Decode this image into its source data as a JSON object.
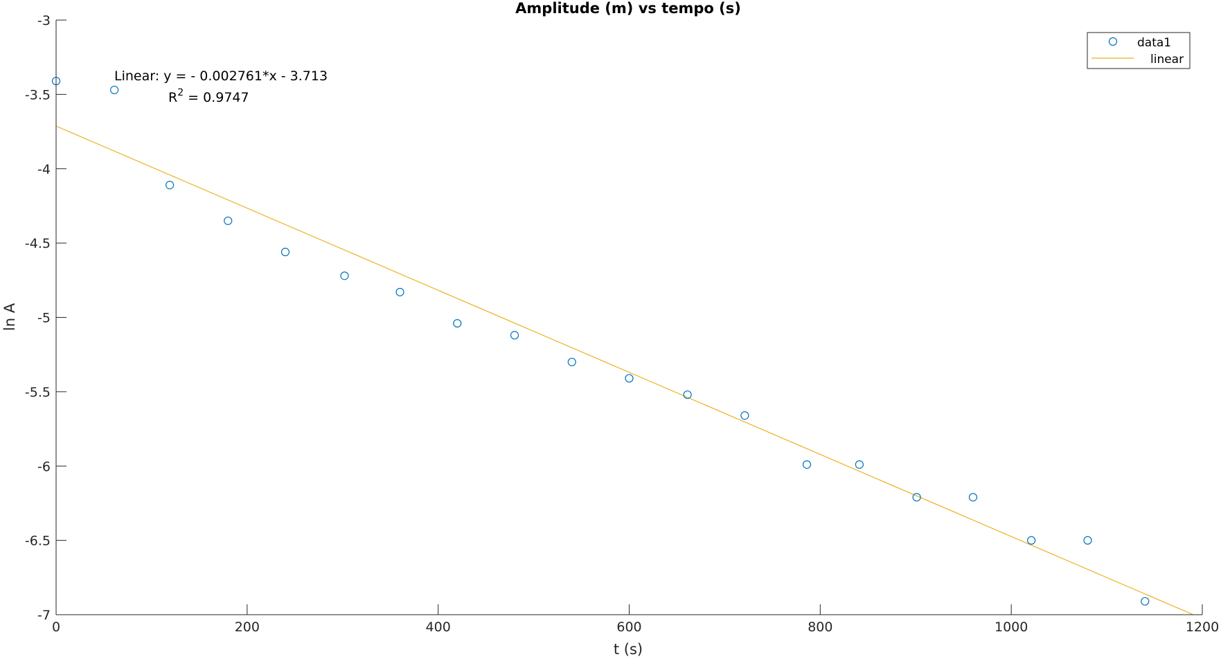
{
  "chart_data": {
    "type": "scatter",
    "title": "Amplitude (m) vs tempo (s)",
    "xlabel": "t (s)",
    "ylabel": "ln A",
    "xlim": [
      0,
      1200
    ],
    "ylim": [
      -7,
      -3
    ],
    "xticks": [
      0,
      200,
      400,
      600,
      800,
      1000,
      1200
    ],
    "yticks": [
      -3,
      -3.5,
      -4,
      -4.5,
      -5,
      -5.5,
      -6,
      -6.5,
      -7
    ],
    "grid": false,
    "legend_position": "top-right",
    "series": [
      {
        "name": "data1",
        "kind": "scatter",
        "marker": "open-circle",
        "color": "#0072BD",
        "x": [
          0,
          61,
          119,
          180,
          240,
          302,
          360,
          420,
          480,
          540,
          600,
          661,
          721,
          786,
          841,
          901,
          960,
          1021,
          1080,
          1140
        ],
        "y": [
          -3.41,
          -3.47,
          -4.11,
          -4.35,
          -4.56,
          -4.72,
          -4.83,
          -5.04,
          -5.12,
          -5.3,
          -5.41,
          -5.52,
          -5.66,
          -5.99,
          -5.99,
          -6.21,
          -6.21,
          -6.5,
          -6.5,
          -6.91
        ]
      },
      {
        "name": "linear",
        "kind": "line",
        "color": "#EDB120",
        "slope": -0.002761,
        "intercept": -3.713,
        "x": [
          0,
          1190
        ]
      }
    ],
    "annotation": {
      "equation": "Linear:  y = - 0.002761*x - 3.713",
      "r2_prefix": "R",
      "r2_sup": "2",
      "r2_value": " = 0.9747"
    }
  }
}
